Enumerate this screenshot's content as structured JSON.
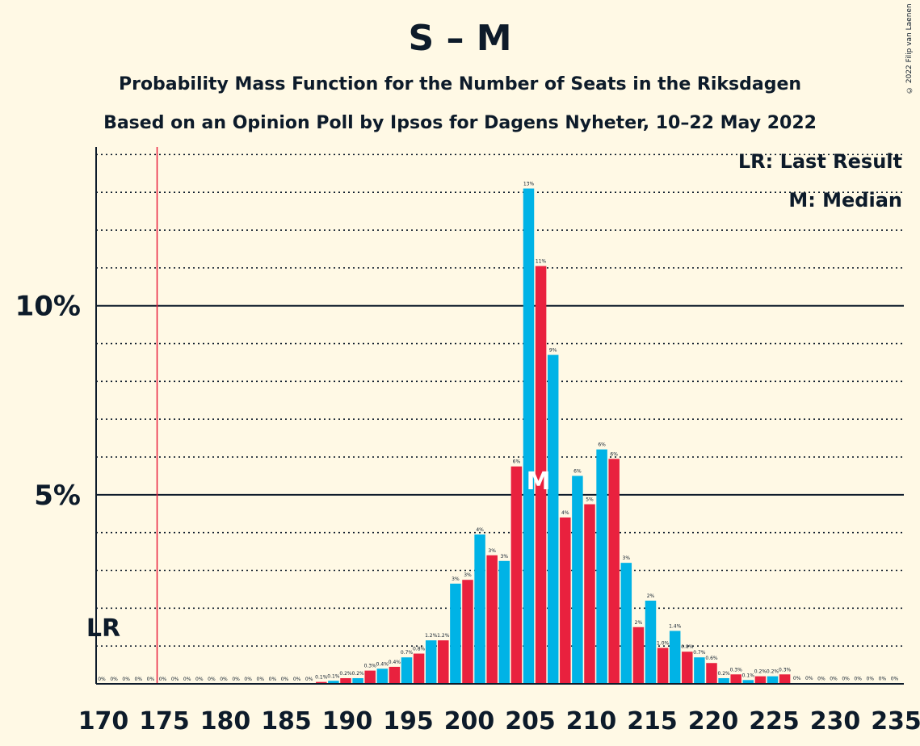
{
  "title": "S – M",
  "subtitle": "Probability Mass Function for the Number of Seats in the Riksdagen",
  "subtitle2": "Based on an Opinion Poll by Ipsos for Dagens Nyheter, 10–22 May 2022",
  "copyright": "© 2022 Filip van Laenen",
  "legend": {
    "lr": "LR: Last Result",
    "median": "M: Median"
  },
  "lr_label": "LR",
  "median_marker": "M",
  "colors": {
    "odd": "#00B3E6",
    "even": "#E9213E",
    "last_result_line": "#E9213E",
    "background": "#FFF9E5",
    "text": "#0D1B2A"
  },
  "chart_data": {
    "type": "bar",
    "xlabel": "",
    "ylabel": "",
    "x": [
      170,
      171,
      172,
      173,
      174,
      175,
      176,
      177,
      178,
      179,
      180,
      181,
      182,
      183,
      184,
      185,
      186,
      187,
      188,
      189,
      190,
      191,
      192,
      193,
      194,
      195,
      196,
      197,
      198,
      199,
      200,
      201,
      202,
      203,
      204,
      205,
      206,
      207,
      208,
      209,
      210,
      211,
      212,
      213,
      214,
      215,
      216,
      217,
      218,
      219,
      220,
      221,
      222,
      223,
      224,
      225,
      226,
      227,
      228,
      229,
      230,
      231,
      232,
      233,
      234,
      235
    ],
    "values": [
      0,
      0,
      0,
      0,
      0,
      0,
      0,
      0,
      0,
      0,
      0,
      0,
      0,
      0,
      0,
      0,
      0,
      0,
      0.05,
      0.08,
      0.15,
      0.15,
      0.35,
      0.4,
      0.45,
      0.7,
      0.8,
      1.15,
      1.15,
      2.65,
      2.75,
      3.95,
      3.4,
      3.25,
      5.75,
      13.1,
      11.05,
      8.7,
      4.4,
      5.5,
      4.75,
      6.2,
      5.95,
      3.2,
      1.5,
      2.2,
      0.95,
      1.4,
      0.85,
      0.7,
      0.55,
      0.15,
      0.25,
      0.1,
      0.2,
      0.2,
      0.25,
      0.02,
      0.02,
      0.01,
      0.01,
      0.01,
      0.01,
      0.01,
      0.01,
      0.01
    ],
    "data_labels": [
      "0%",
      "0%",
      "0%",
      "0%",
      "0%",
      "0%",
      "0%",
      "0%",
      "0%",
      "0%",
      "0%",
      "0%",
      "0%",
      "0%",
      "0%",
      "0%",
      "0%",
      "0%",
      "0.1%",
      "0.1%",
      "0.2%",
      "0.2%",
      "0.3%",
      "0.4%",
      "0.4%",
      "0.7%",
      "0.8%",
      "1.2%",
      "1.2%",
      "3%",
      "3%",
      "4%",
      "3%",
      "3%",
      "6%",
      "13%",
      "11%",
      "9%",
      "4%",
      "6%",
      "5%",
      "6%",
      "6%",
      "3%",
      "2%",
      "2%",
      "1.0%",
      "1.4%",
      "0.8%",
      "0.7%",
      "0.6%",
      "0.2%",
      "0.3%",
      "0.1%",
      "0.2%",
      "0.2%",
      "0.3%",
      "0%",
      "0%",
      "0%",
      "0%",
      "0%",
      "0%",
      "0%",
      "0%",
      "0%"
    ],
    "x_tick_labels": [
      "170",
      "175",
      "180",
      "185",
      "190",
      "195",
      "200",
      "205",
      "210",
      "215",
      "220",
      "225",
      "230",
      "235"
    ],
    "y_tick_labels": [
      {
        "value": 5,
        "label": "5%"
      },
      {
        "value": 10,
        "label": "10%"
      }
    ],
    "ylim": [
      0,
      14.2
    ],
    "minor_gridlines_every": 1,
    "last_result": 175,
    "median": 206
  }
}
